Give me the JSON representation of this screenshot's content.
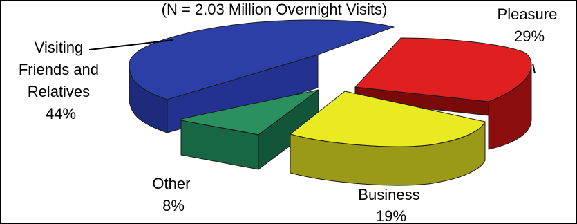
{
  "chart_data": {
    "type": "pie",
    "title": "(N = 2.03 Million Overnight Visits)",
    "slices": [
      {
        "label_lines": [
          "Visiting",
          "Friends and",
          "Relatives"
        ],
        "value_text": "44%",
        "value": 44,
        "color": "#2b3fa6"
      },
      {
        "label_lines": [
          "Pleasure"
        ],
        "value_text": "29%",
        "value": 29,
        "color": "#e02020"
      },
      {
        "label_lines": [
          "Business"
        ],
        "value_text": "19%",
        "value": 19,
        "color": "#eaea22"
      },
      {
        "label_lines": [
          "Other"
        ],
        "value_text": "8%",
        "value": 8,
        "color": "#2a9060"
      }
    ]
  }
}
